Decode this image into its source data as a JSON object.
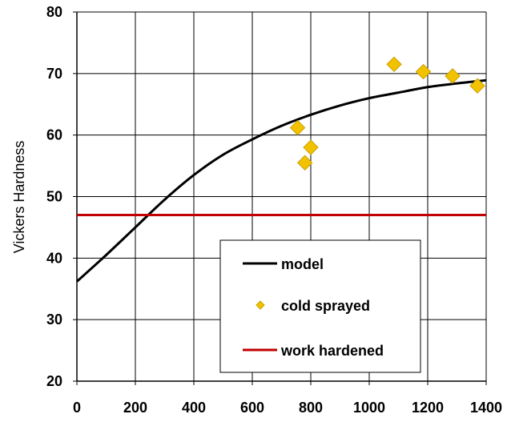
{
  "chart_data": {
    "type": "scatter",
    "title": "",
    "xlabel": "",
    "ylabel": "Vickers Hardness",
    "xlim": [
      0,
      1400
    ],
    "ylim": [
      20,
      80
    ],
    "xticks": [
      0,
      200,
      400,
      600,
      800,
      1000,
      1200,
      1400
    ],
    "yticks": [
      20,
      30,
      40,
      50,
      60,
      70,
      80
    ],
    "grid": true,
    "legend_position": "bottom-right",
    "series": [
      {
        "name": "model",
        "kind": "line",
        "color": "#000000",
        "x": [
          0,
          100,
          200,
          300,
          400,
          500,
          600,
          700,
          800,
          900,
          1000,
          1100,
          1200,
          1300,
          1400
        ],
        "y": [
          36.2,
          40.5,
          45.0,
          49.5,
          53.5,
          56.8,
          59.3,
          61.5,
          63.3,
          64.8,
          66.0,
          66.9,
          67.8,
          68.4,
          68.9
        ]
      },
      {
        "name": "cold sprayed",
        "kind": "scatter",
        "marker": "diamond",
        "color": "#f2c200",
        "x": [
          755,
          780,
          800,
          1085,
          1185,
          1285,
          1370
        ],
        "y": [
          61.2,
          55.5,
          58.0,
          71.5,
          70.3,
          69.6,
          68.0
        ]
      },
      {
        "name": "work hardened",
        "kind": "hline",
        "color": "#c00000",
        "y": 47
      }
    ]
  }
}
